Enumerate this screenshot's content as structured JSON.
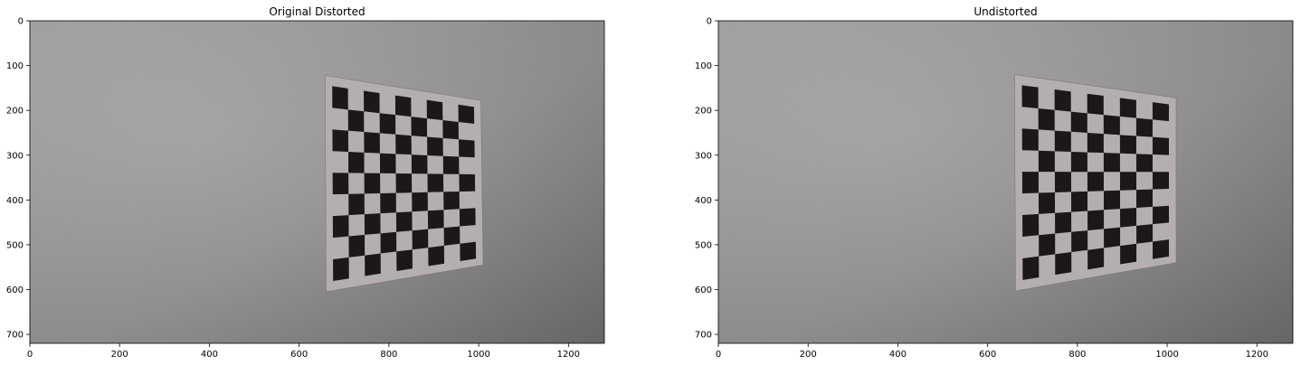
{
  "figure": {
    "panels": [
      {
        "id": "left",
        "title": "Original Distorted",
        "image_description": "grey textured wall with a black-and-white checkerboard calibration pattern, slight lens distortion",
        "x_axis": {
          "range": [
            0,
            1280
          ],
          "ticks": [
            0,
            200,
            400,
            600,
            800,
            1000,
            1200
          ]
        },
        "y_axis": {
          "range": [
            0,
            720
          ],
          "inverted": true,
          "ticks": [
            0,
            100,
            200,
            300,
            400,
            500,
            600,
            700
          ]
        }
      },
      {
        "id": "right",
        "title": "Undistorted",
        "image_description": "same grey wall and checkerboard after distortion correction",
        "x_axis": {
          "range": [
            0,
            1280
          ],
          "ticks": [
            0,
            200,
            400,
            600,
            800,
            1000,
            1200
          ]
        },
        "y_axis": {
          "range": [
            0,
            720
          ],
          "inverted": true,
          "ticks": [
            0,
            100,
            200,
            300,
            400,
            500,
            600,
            700
          ]
        }
      }
    ],
    "colors": {
      "wall_light": "#a6a3a5",
      "wall_dark": "#6f6e70",
      "board_light": "#b5aeb1",
      "board_dark": "#1b171a",
      "axis": "#000000"
    }
  }
}
